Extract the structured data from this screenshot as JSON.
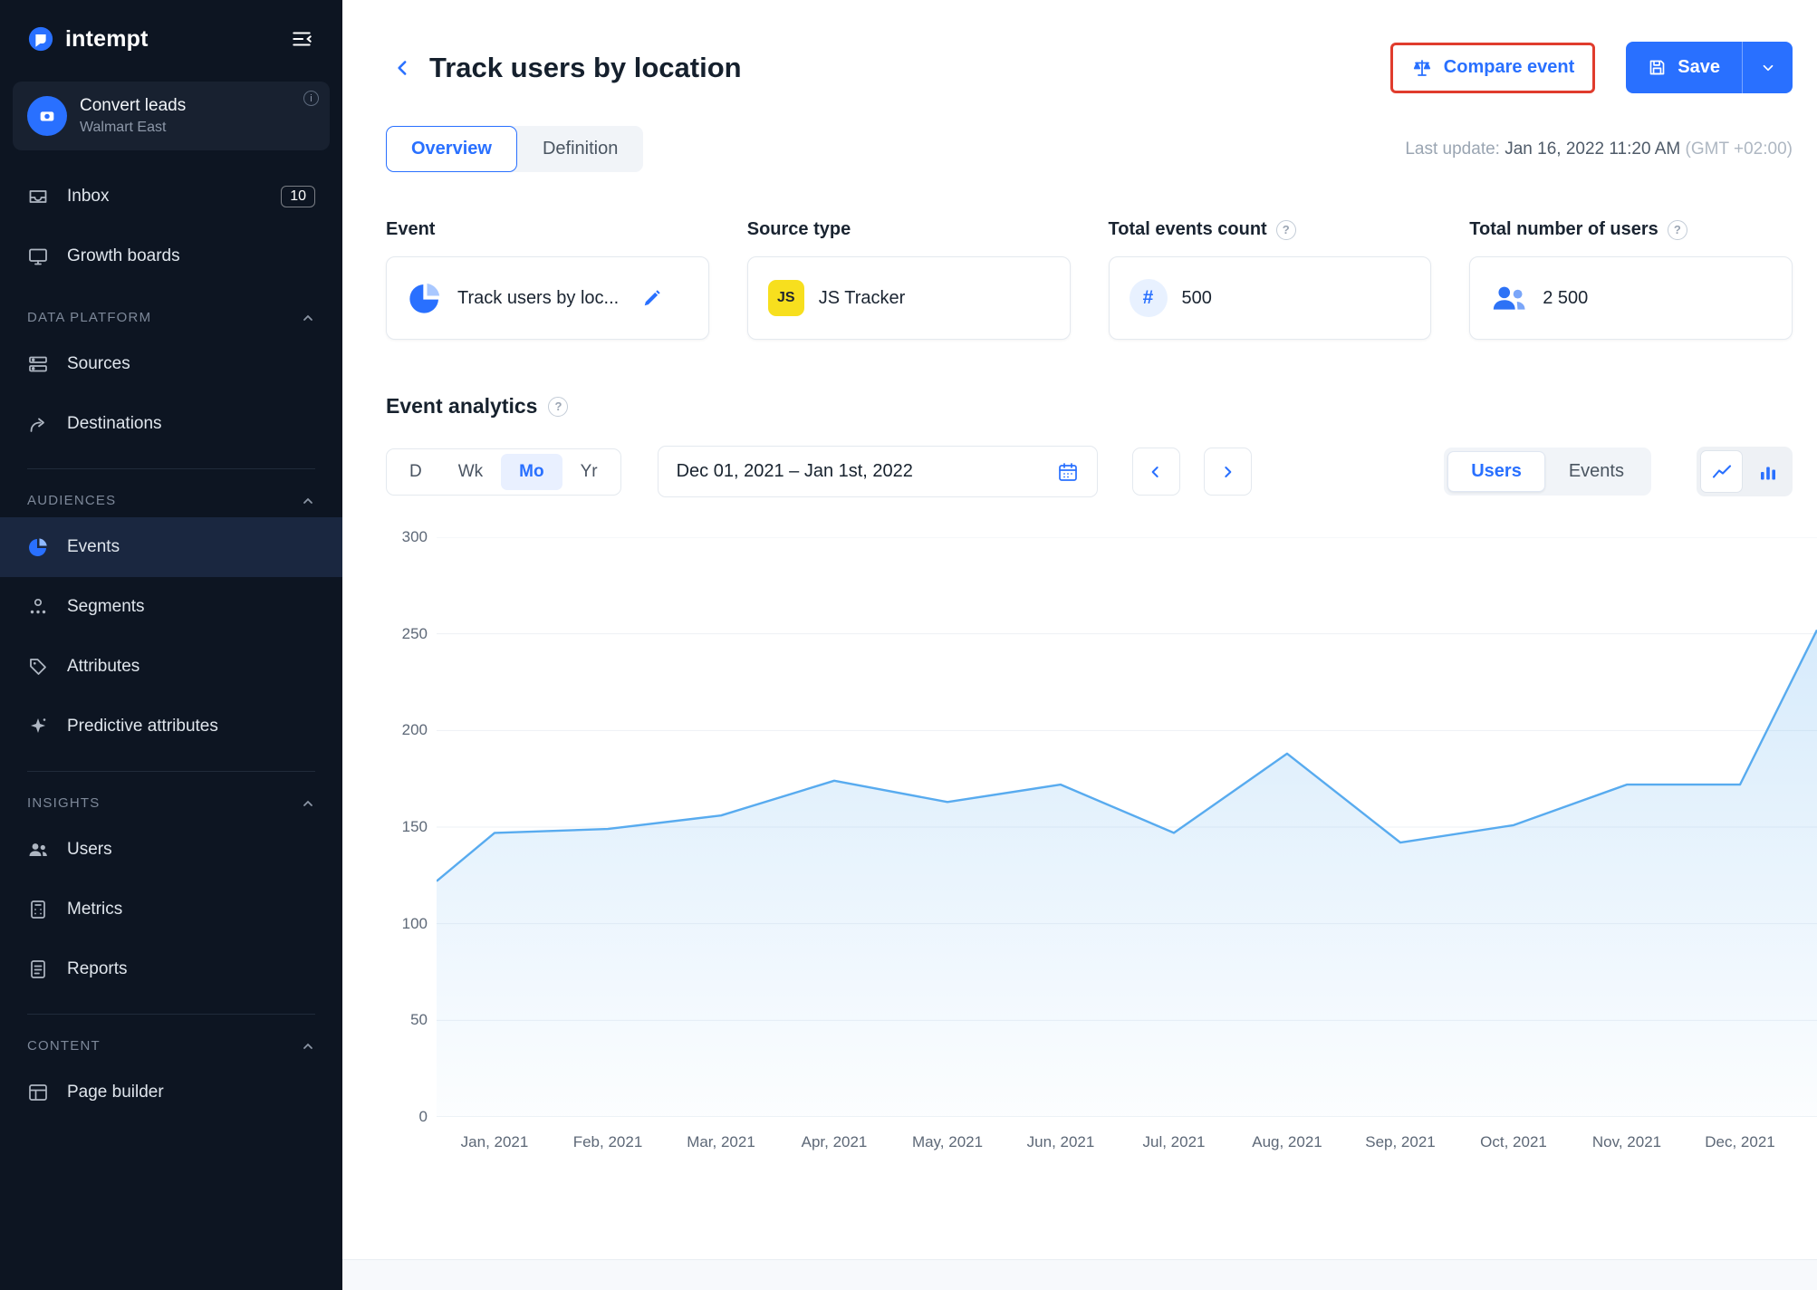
{
  "brand": {
    "name": "intempt"
  },
  "sidebar": {
    "workspace": {
      "title": "Convert leads",
      "subtitle": "Walmart East"
    },
    "top_items": [
      {
        "label": "Inbox",
        "badge": "10"
      },
      {
        "label": "Growth boards"
      }
    ],
    "sections": [
      {
        "label": "DATA PLATFORM",
        "items": [
          {
            "label": "Sources"
          },
          {
            "label": "Destinations"
          }
        ]
      },
      {
        "label": "AUDIENCES",
        "items": [
          {
            "label": "Events"
          },
          {
            "label": "Segments"
          },
          {
            "label": "Attributes"
          },
          {
            "label": "Predictive attributes"
          }
        ]
      },
      {
        "label": "INSIGHTS",
        "items": [
          {
            "label": "Users"
          },
          {
            "label": "Metrics"
          },
          {
            "label": "Reports"
          }
        ]
      },
      {
        "label": "CONTENT",
        "items": [
          {
            "label": "Page builder"
          }
        ]
      }
    ]
  },
  "header": {
    "title": "Track users by location",
    "compare_button_label": "Compare event",
    "save_button_label": "Save"
  },
  "tabs": {
    "overview": "Overview",
    "definition": "Definition"
  },
  "last_update": {
    "label": "Last update:",
    "value": "Jan 16, 2022 11:20 AM",
    "timezone": "(GMT +02:00)"
  },
  "cards": {
    "event": {
      "label": "Event",
      "value": "Track users by loc..."
    },
    "source_type": {
      "label": "Source type",
      "badge": "JS",
      "value": "JS Tracker"
    },
    "events_count": {
      "label": "Total events count",
      "icon": "#",
      "value": "500"
    },
    "users_count": {
      "label": "Total number of users",
      "value": "2 500"
    }
  },
  "analytics": {
    "title": "Event analytics",
    "granularity": {
      "d": "D",
      "wk": "Wk",
      "mo": "Mo",
      "yr": "Yr",
      "active": "Mo"
    },
    "date_range": "Dec 01, 2021 – Jan 1st, 2022",
    "series": {
      "users": "Users",
      "events": "Events",
      "active": "Users"
    }
  },
  "chart_data": {
    "type": "area",
    "series_name": "Users",
    "categories": [
      "Jan, 2021",
      "Feb, 2021",
      "Mar, 2021",
      "Apr, 2021",
      "May, 2021",
      "Jun, 2021",
      "Jul, 2021",
      "Aug, 2021",
      "Sep, 2021",
      "Oct, 2021",
      "Nov, 2021",
      "Dec, 2021"
    ],
    "values": [
      147,
      149,
      156,
      174,
      163,
      172,
      147,
      188,
      142,
      151,
      172,
      172
    ],
    "lead_in": 122,
    "lead_out": 252,
    "ylim": [
      0,
      300
    ],
    "yticks": [
      0,
      50,
      100,
      150,
      200,
      250,
      300
    ],
    "line_color": "#58abef",
    "grid": true,
    "legend": "none"
  },
  "colors": {
    "accent": "#2970ff",
    "annotation": "#e03c2d",
    "js_yellow": "#f7df1e",
    "sidebar_bg": "#0d1522"
  }
}
